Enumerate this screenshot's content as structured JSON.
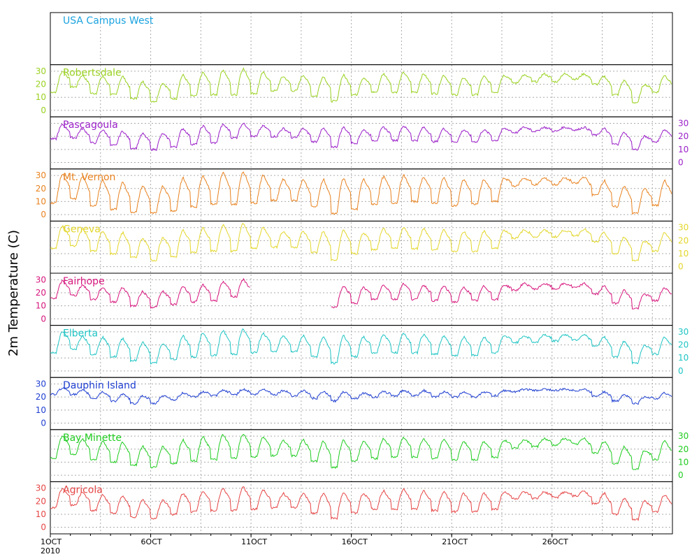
{
  "chart_data": {
    "type": "line",
    "ylabel": "2m Temperature (C)",
    "xlim": [
      "2010-10-01",
      "2010-10-31"
    ],
    "ylim": [
      -5,
      35
    ],
    "y_ticks": [
      0,
      10,
      20,
      30
    ],
    "grid": true,
    "x_ticks": [
      {
        "day": 1,
        "label": "1OCT",
        "sub": "2010"
      },
      {
        "day": 6,
        "label": "6OCT"
      },
      {
        "day": 11,
        "label": "11OCT"
      },
      {
        "day": 16,
        "label": "16OCT"
      },
      {
        "day": 21,
        "label": "21OCT"
      },
      {
        "day": 26,
        "label": "26OCT"
      }
    ],
    "panels": [
      {
        "name": "USA Campus West",
        "color": "#1aa3e0",
        "axis": "none",
        "data": false,
        "daily_max": [],
        "daily_min": []
      },
      {
        "name": "Robertsdale",
        "color": "#99d11f",
        "axis": "left",
        "data": true,
        "daily_max": [
          30,
          27,
          26,
          26,
          22,
          21,
          27,
          29,
          31,
          32,
          29,
          26,
          27,
          26,
          27,
          25,
          28,
          29,
          28,
          27,
          25,
          26,
          27,
          27,
          28,
          28,
          28,
          26,
          23,
          20,
          27
        ],
        "daily_min": [
          14,
          18,
          13,
          12,
          9,
          7,
          9,
          11,
          12,
          12,
          13,
          15,
          15,
          11,
          7,
          12,
          14,
          14,
          14,
          13,
          12,
          12,
          14,
          21,
          22,
          22,
          24,
          20,
          12,
          6,
          14
        ]
      },
      {
        "name": "Pascagoula",
        "color": "#9a1fc8",
        "axis": "right",
        "data": true,
        "daily_max": [
          29,
          26,
          25,
          24,
          22,
          22,
          26,
          28,
          29,
          30,
          28,
          26,
          26,
          26,
          27,
          25,
          27,
          28,
          27,
          26,
          25,
          25,
          26,
          27,
          27,
          27,
          27,
          26,
          23,
          20,
          25
        ],
        "daily_min": [
          18,
          19,
          15,
          13,
          11,
          10,
          12,
          14,
          15,
          19,
          20,
          20,
          19,
          16,
          12,
          15,
          17,
          17,
          17,
          16,
          16,
          16,
          17,
          23,
          24,
          24,
          25,
          21,
          14,
          10,
          16
        ]
      },
      {
        "name": "Mt. Vernon",
        "color": "#e8821f",
        "axis": "left",
        "data": true,
        "daily_max": [
          31,
          29,
          26,
          25,
          22,
          22,
          28,
          30,
          32,
          33,
          30,
          27,
          27,
          27,
          28,
          27,
          29,
          30,
          29,
          28,
          27,
          27,
          28,
          28,
          28,
          28,
          29,
          26,
          22,
          20,
          26
        ],
        "daily_min": [
          9,
          12,
          7,
          4,
          2,
          1,
          3,
          6,
          8,
          8,
          9,
          11,
          11,
          6,
          1,
          4,
          8,
          9,
          10,
          9,
          7,
          8,
          10,
          22,
          23,
          23,
          24,
          15,
          6,
          1,
          7
        ]
      },
      {
        "name": "Geneva",
        "color": "#e3d62a",
        "axis": "right",
        "data": true,
        "daily_max": [
          31,
          29,
          27,
          26,
          22,
          22,
          28,
          30,
          32,
          33,
          30,
          27,
          27,
          27,
          28,
          26,
          29,
          30,
          29,
          28,
          27,
          27,
          28,
          28,
          28,
          28,
          29,
          26,
          23,
          20,
          26
        ],
        "daily_min": [
          14,
          16,
          12,
          10,
          7,
          5,
          8,
          11,
          12,
          12,
          14,
          15,
          15,
          11,
          5,
          10,
          13,
          14,
          14,
          13,
          12,
          12,
          14,
          22,
          23,
          23,
          24,
          19,
          10,
          5,
          12
        ]
      },
      {
        "name": "Fairhope",
        "color": "#d6167d",
        "axis": "left",
        "data": true,
        "daily_max": [
          29,
          26,
          24,
          24,
          21,
          21,
          25,
          26,
          28,
          30,
          null,
          null,
          null,
          null,
          25,
          24,
          26,
          27,
          26,
          25,
          24,
          25,
          26,
          27,
          27,
          27,
          27,
          25,
          22,
          19,
          24
        ],
        "daily_min": [
          16,
          18,
          15,
          13,
          10,
          9,
          11,
          13,
          14,
          17,
          null,
          null,
          null,
          null,
          9,
          12,
          15,
          15,
          15,
          14,
          13,
          14,
          15,
          22,
          23,
          23,
          24,
          19,
          12,
          8,
          14
        ]
      },
      {
        "name": "Elberta",
        "color": "#1fc4c4",
        "axis": "right",
        "data": true,
        "daily_max": [
          30,
          27,
          26,
          25,
          22,
          21,
          27,
          29,
          31,
          32,
          29,
          27,
          27,
          26,
          27,
          26,
          28,
          29,
          28,
          27,
          26,
          26,
          27,
          27,
          28,
          28,
          28,
          26,
          23,
          20,
          26
        ],
        "daily_min": [
          14,
          17,
          13,
          11,
          8,
          6,
          9,
          11,
          12,
          13,
          14,
          15,
          15,
          11,
          6,
          11,
          14,
          14,
          14,
          13,
          12,
          12,
          14,
          22,
          22,
          23,
          24,
          19,
          11,
          6,
          13
        ]
      },
      {
        "name": "Dauphin Island",
        "color": "#1f3fd1",
        "axis": "left",
        "data": true,
        "daily_max": [
          27,
          25,
          24,
          22,
          21,
          21,
          23,
          24,
          25,
          26,
          26,
          25,
          25,
          24,
          24,
          23,
          24,
          25,
          25,
          24,
          24,
          24,
          25,
          26,
          26,
          26,
          26,
          24,
          22,
          20,
          23
        ],
        "daily_min": [
          22,
          22,
          19,
          17,
          15,
          15,
          18,
          20,
          21,
          22,
          22,
          22,
          21,
          19,
          17,
          19,
          20,
          21,
          21,
          20,
          20,
          20,
          21,
          24,
          25,
          25,
          25,
          21,
          17,
          15,
          19
        ]
      },
      {
        "name": "Bay Minette",
        "color": "#1fcc1f",
        "axis": "right",
        "data": true,
        "daily_max": [
          30,
          28,
          26,
          25,
          22,
          22,
          27,
          29,
          31,
          32,
          29,
          27,
          27,
          26,
          27,
          26,
          28,
          29,
          28,
          27,
          26,
          26,
          27,
          27,
          28,
          28,
          28,
          26,
          22,
          19,
          26
        ],
        "daily_min": [
          13,
          16,
          12,
          10,
          8,
          6,
          9,
          11,
          12,
          13,
          14,
          15,
          15,
          11,
          6,
          11,
          13,
          14,
          14,
          13,
          12,
          12,
          14,
          21,
          22,
          23,
          24,
          17,
          9,
          5,
          12
        ]
      },
      {
        "name": "Agricola",
        "color": "#e64545",
        "axis": "left",
        "data": true,
        "daily_max": [
          30,
          27,
          25,
          24,
          21,
          21,
          26,
          28,
          30,
          31,
          29,
          26,
          26,
          26,
          27,
          26,
          28,
          29,
          28,
          27,
          26,
          26,
          27,
          27,
          27,
          27,
          28,
          26,
          22,
          20,
          25
        ],
        "daily_min": [
          15,
          17,
          13,
          11,
          8,
          7,
          10,
          12,
          13,
          13,
          14,
          15,
          15,
          11,
          7,
          11,
          14,
          14,
          14,
          13,
          12,
          12,
          14,
          22,
          22,
          23,
          24,
          18,
          10,
          6,
          12
        ]
      }
    ]
  }
}
